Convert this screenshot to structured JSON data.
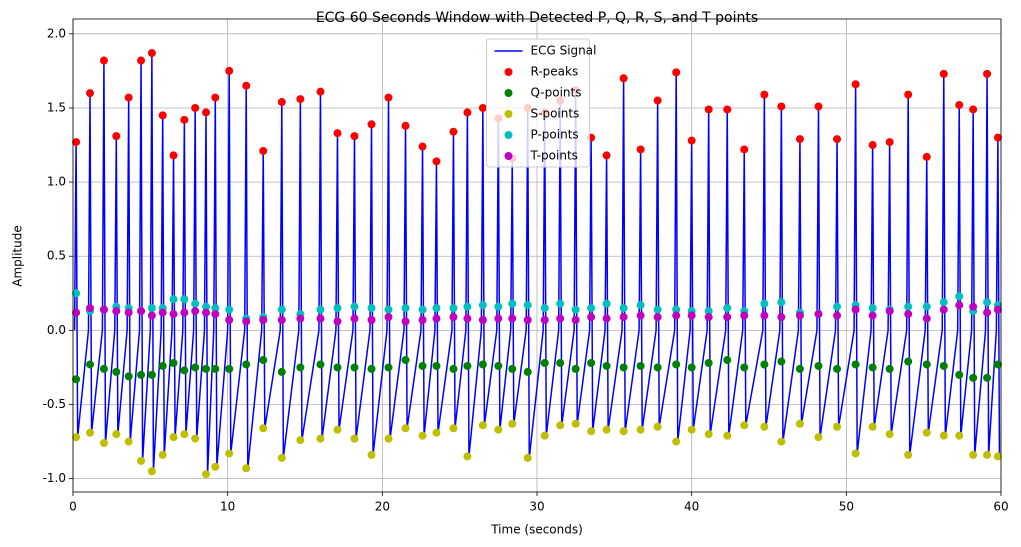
{
  "chart_data": {
    "type": "line",
    "title": "ECG 60 Seconds Window with Detected P, Q, R, S, and T points",
    "x_label": "Time (seconds)",
    "y_label": "Amplitude",
    "xlim": [
      0,
      60
    ],
    "ylim": [
      -1.09,
      2.1
    ],
    "xticks": [
      0,
      10,
      20,
      30,
      40,
      50,
      60
    ],
    "yticks": [
      {
        "value": -1,
        "label": "-1.0"
      },
      -0.5,
      {
        "value": 0,
        "label": "0.0"
      },
      0.5,
      {
        "value": 1,
        "label": "1.0"
      },
      1.5,
      {
        "value": 2,
        "label": "2.0"
      }
    ],
    "grid": true,
    "legend": "upper center",
    "x": [
      0.2,
      1.1,
      2.0,
      2.8,
      3.6,
      4.4,
      5.1,
      5.8,
      6.5,
      7.2,
      7.9,
      8.6,
      9.2,
      10.1,
      11.2,
      12.3,
      13.5,
      14.7,
      16.0,
      17.1,
      18.2,
      19.3,
      20.4,
      21.5,
      22.6,
      23.5,
      24.6,
      25.5,
      26.5,
      27.5,
      28.4,
      29.4,
      30.5,
      31.5,
      32.5,
      33.5,
      34.5,
      35.6,
      36.7,
      37.8,
      39.0,
      40.0,
      41.1,
      42.3,
      43.4,
      44.7,
      45.8,
      47.0,
      48.2,
      49.4,
      50.6,
      51.7,
      52.8,
      54.0,
      55.2,
      56.3,
      57.3,
      58.2,
      59.1,
      59.8
    ],
    "series": [
      {
        "name": "ECG Signal",
        "color": "#0000ff",
        "style": "line",
        "x": [
          0.1,
          0.2,
          0.3,
          1.0,
          1.1,
          1.2,
          1.9,
          2.0,
          2.1,
          2.7,
          2.8,
          2.9,
          3.5,
          3.6,
          3.7,
          4.3,
          4.4,
          4.5,
          5.0,
          5.1,
          5.2,
          5.7,
          5.8,
          5.9,
          6.4,
          6.5,
          6.6,
          7.1,
          7.2,
          7.3,
          7.8,
          7.9,
          8.0,
          8.5,
          8.6,
          8.7,
          9.1,
          9.2,
          9.3,
          10.0,
          10.1,
          10.2,
          11.1,
          11.2,
          11.3,
          12.2,
          12.3,
          12.4,
          13.4,
          13.5,
          13.6,
          14.6,
          14.7,
          14.8,
          15.9,
          16.0,
          16.1,
          17.0,
          17.1,
          17.2,
          18.1,
          18.2,
          18.3,
          19.2,
          19.3,
          19.4,
          20.3,
          20.4,
          20.5,
          21.4,
          21.5,
          21.6,
          22.5,
          22.6,
          22.7,
          23.4,
          23.5,
          23.6,
          24.5,
          24.6,
          24.7,
          25.4,
          25.5,
          25.6,
          26.4,
          26.5,
          26.6,
          27.4,
          27.5,
          27.6,
          28.3,
          28.4,
          28.5,
          29.3,
          29.4,
          29.5,
          30.4,
          30.5,
          30.6,
          31.4,
          31.5,
          31.6,
          32.4,
          32.5,
          32.6,
          33.4,
          33.5,
          33.6,
          34.4,
          34.5,
          34.6,
          35.5,
          35.6,
          35.7,
          36.6,
          36.7,
          36.8,
          37.7,
          37.8,
          37.9,
          38.9,
          39.0,
          39.1,
          39.9,
          40.0,
          40.1,
          41.0,
          41.1,
          41.2,
          42.2,
          42.3,
          42.4,
          43.3,
          43.4,
          43.5,
          44.6,
          44.7,
          44.8,
          45.7,
          45.8,
          45.9,
          46.9,
          47.0,
          47.1,
          48.1,
          48.2,
          48.3,
          49.3,
          49.4,
          49.5,
          50.5,
          50.6,
          50.7,
          51.6,
          51.7,
          51.8,
          52.7,
          52.8,
          52.9,
          53.9,
          54.0,
          54.1,
          55.1,
          55.2,
          55.3,
          56.2,
          56.3,
          56.4,
          57.2,
          57.3,
          57.4,
          58.1,
          58.2,
          58.3,
          59.0,
          59.1,
          59.2,
          59.7,
          59.8,
          59.9
        ],
        "values": [
          0,
          1.27,
          -0.72,
          0,
          1.6,
          -0.69,
          0,
          1.82,
          -0.76,
          0,
          1.31,
          -0.7,
          0,
          1.57,
          -0.75,
          0,
          1.82,
          -0.88,
          0,
          1.87,
          -0.95,
          0,
          1.45,
          -0.84,
          0,
          1.18,
          -0.72,
          0,
          1.42,
          -0.7,
          0,
          1.5,
          -0.73,
          0,
          1.47,
          -0.97,
          0,
          1.57,
          -0.92,
          0,
          1.75,
          -0.83,
          0,
          1.65,
          -0.93,
          0,
          1.21,
          -0.66,
          0,
          1.54,
          -0.86,
          0,
          1.56,
          -0.74,
          0,
          1.61,
          -0.73,
          0,
          1.33,
          -0.67,
          0,
          1.31,
          -0.73,
          0,
          1.39,
          -0.84,
          0,
          1.57,
          -0.73,
          0,
          1.38,
          -0.66,
          0,
          1.24,
          -0.71,
          0,
          1.14,
          -0.69,
          0,
          1.34,
          -0.66,
          0,
          1.47,
          -0.85,
          0,
          1.5,
          -0.64,
          0,
          1.43,
          -0.67,
          0,
          1.16,
          -0.63,
          0,
          1.5,
          -0.86,
          0,
          1.47,
          -0.71,
          0,
          1.55,
          -0.64,
          0,
          1.62,
          -0.63,
          0,
          1.3,
          -0.68,
          0,
          1.18,
          -0.67,
          0,
          1.7,
          -0.68,
          0,
          1.22,
          -0.67,
          0,
          1.55,
          -0.65,
          0,
          1.74,
          -0.75,
          0,
          1.28,
          -0.67,
          0,
          1.49,
          -0.7,
          0,
          1.49,
          -0.71,
          0,
          1.22,
          -0.64,
          0,
          1.59,
          -0.65,
          0,
          1.51,
          -0.75,
          0,
          1.29,
          -0.63,
          0,
          1.51,
          -0.72,
          0,
          1.29,
          -0.65,
          0,
          1.66,
          -0.83,
          0,
          1.25,
          -0.65,
          0,
          1.27,
          -0.7,
          0,
          1.59,
          -0.84,
          0,
          1.17,
          -0.69,
          0,
          1.73,
          -0.71,
          0,
          1.52,
          -0.71,
          0,
          1.49,
          -0.84,
          0,
          1.73,
          -0.84,
          0,
          1.3,
          -0.85
        ]
      },
      {
        "name": "R-peaks",
        "color": "#ff0000",
        "style": "points",
        "values": [
          1.27,
          1.6,
          1.82,
          1.31,
          1.57,
          1.82,
          1.87,
          1.45,
          1.18,
          1.42,
          1.5,
          1.47,
          1.57,
          1.75,
          1.65,
          1.21,
          1.54,
          1.56,
          1.61,
          1.33,
          1.31,
          1.39,
          1.57,
          1.38,
          1.24,
          1.14,
          1.34,
          1.47,
          1.5,
          1.43,
          1.16,
          1.5,
          1.47,
          1.55,
          1.62,
          1.3,
          1.18,
          1.7,
          1.22,
          1.55,
          1.74,
          1.28,
          1.49,
          1.49,
          1.22,
          1.59,
          1.51,
          1.29,
          1.51,
          1.29,
          1.66,
          1.25,
          1.27,
          1.59,
          1.17,
          1.73,
          1.52,
          1.49,
          1.73,
          1.3
        ]
      },
      {
        "name": "Q-points",
        "color": "#008000",
        "style": "points",
        "values": [
          -0.33,
          -0.23,
          -0.26,
          -0.28,
          -0.31,
          -0.3,
          -0.3,
          -0.24,
          -0.22,
          -0.27,
          -0.25,
          -0.26,
          -0.26,
          -0.26,
          -0.23,
          -0.2,
          -0.28,
          -0.25,
          -0.23,
          -0.25,
          -0.25,
          -0.26,
          -0.25,
          -0.2,
          -0.24,
          -0.24,
          -0.26,
          -0.24,
          -0.23,
          -0.24,
          -0.26,
          -0.28,
          -0.22,
          -0.22,
          -0.26,
          -0.22,
          -0.24,
          -0.25,
          -0.24,
          -0.25,
          -0.23,
          -0.25,
          -0.22,
          -0.2,
          -0.25,
          -0.23,
          -0.21,
          -0.26,
          -0.24,
          -0.26,
          -0.23,
          -0.25,
          -0.26,
          -0.21,
          -0.23,
          -0.24,
          -0.3,
          -0.32,
          -0.32,
          -0.23
        ]
      },
      {
        "name": "S-points",
        "color": "#bfbf00",
        "style": "points",
        "values": [
          -0.72,
          -0.69,
          -0.76,
          -0.7,
          -0.75,
          -0.88,
          -0.95,
          -0.84,
          -0.72,
          -0.7,
          -0.73,
          -0.97,
          -0.92,
          -0.83,
          -0.93,
          -0.66,
          -0.86,
          -0.74,
          -0.73,
          -0.67,
          -0.73,
          -0.84,
          -0.73,
          -0.66,
          -0.71,
          -0.69,
          -0.66,
          -0.85,
          -0.64,
          -0.67,
          -0.63,
          -0.86,
          -0.71,
          -0.64,
          -0.63,
          -0.68,
          -0.67,
          -0.68,
          -0.67,
          -0.65,
          -0.75,
          -0.67,
          -0.7,
          -0.71,
          -0.64,
          -0.65,
          -0.75,
          -0.63,
          -0.72,
          -0.65,
          -0.83,
          -0.65,
          -0.7,
          -0.84,
          -0.69,
          -0.71,
          -0.71,
          -0.84,
          -0.84,
          -0.85
        ]
      },
      {
        "name": "P-points",
        "color": "#00bfbf",
        "style": "points",
        "values": [
          0.25,
          0.13,
          0.14,
          0.16,
          0.15,
          0.13,
          0.15,
          0.15,
          0.21,
          0.21,
          0.18,
          0.16,
          0.15,
          0.14,
          0.08,
          0.09,
          0.14,
          0.11,
          0.14,
          0.15,
          0.16,
          0.15,
          0.14,
          0.15,
          0.14,
          0.15,
          0.15,
          0.16,
          0.17,
          0.16,
          0.18,
          0.17,
          0.15,
          0.18,
          0.14,
          0.15,
          0.18,
          0.15,
          0.17,
          0.14,
          0.14,
          0.13,
          0.13,
          0.15,
          0.13,
          0.18,
          0.19,
          0.12,
          0.11,
          0.16,
          0.17,
          0.15,
          0.14,
          0.16,
          0.16,
          0.19,
          0.23,
          0.13,
          0.19,
          0.17
        ]
      },
      {
        "name": "T-points",
        "color": "#bf00bf",
        "style": "points",
        "values": [
          0.12,
          0.15,
          0.14,
          0.13,
          0.12,
          0.13,
          0.1,
          0.12,
          0.11,
          0.12,
          0.13,
          0.12,
          0.11,
          0.07,
          0.06,
          0.07,
          0.07,
          0.08,
          0.08,
          0.06,
          0.08,
          0.07,
          0.09,
          0.06,
          0.07,
          0.08,
          0.09,
          0.08,
          0.07,
          0.08,
          0.08,
          0.07,
          0.07,
          0.08,
          0.07,
          0.09,
          0.08,
          0.09,
          0.1,
          0.09,
          0.1,
          0.1,
          0.09,
          0.09,
          0.1,
          0.1,
          0.09,
          0.1,
          0.11,
          0.1,
          0.14,
          0.1,
          0.13,
          0.11,
          0.08,
          0.14,
          0.17,
          0.16,
          0.12,
          0.14
        ]
      }
    ]
  }
}
